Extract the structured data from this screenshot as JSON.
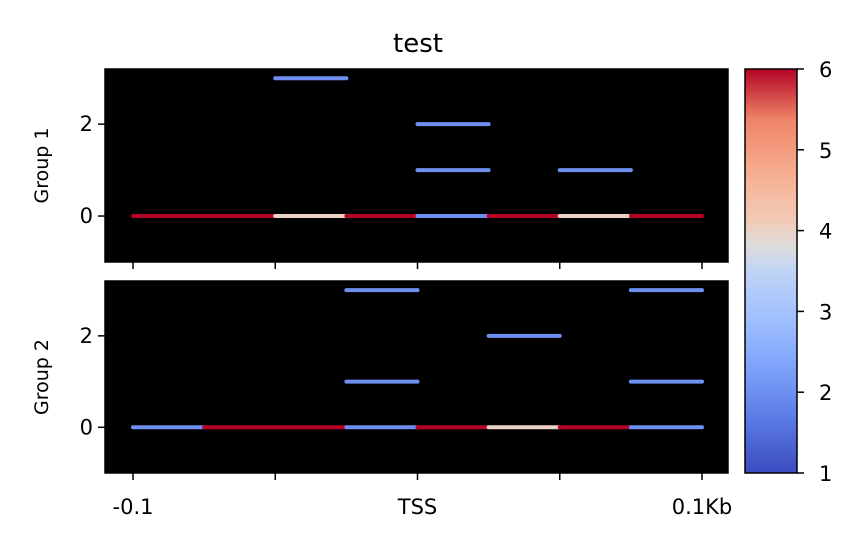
{
  "chart_data": {
    "type": "heatmap",
    "title": "test",
    "x_tick_labels": [
      "-0.1",
      "TSS",
      "0.1Kb"
    ],
    "xlim": [
      -0.1,
      0.1
    ],
    "panels": [
      {
        "name": "Group 1",
        "ylabel": "Group 1",
        "ylim": [
          -1,
          3.2
        ],
        "y_ticks": [
          0,
          2
        ],
        "segments": [
          {
            "y": 3,
            "x_start": -0.05,
            "x_end": -0.025,
            "value": 2
          },
          {
            "y": 2,
            "x_start": 0.0,
            "x_end": 0.025,
            "value": 2
          },
          {
            "y": 1,
            "x_start": 0.0,
            "x_end": 0.025,
            "value": 2
          },
          {
            "y": 1,
            "x_start": 0.05,
            "x_end": 0.075,
            "value": 2
          },
          {
            "y": 0,
            "x_start": -0.1,
            "x_end": -0.05,
            "value": 6
          },
          {
            "y": 0,
            "x_start": -0.05,
            "x_end": -0.025,
            "value": 4
          },
          {
            "y": 0,
            "x_start": -0.025,
            "x_end": 0.0,
            "value": 6
          },
          {
            "y": 0,
            "x_start": 0.0,
            "x_end": 0.025,
            "value": 2
          },
          {
            "y": 0,
            "x_start": 0.025,
            "x_end": 0.05,
            "value": 6
          },
          {
            "y": 0,
            "x_start": 0.05,
            "x_end": 0.075,
            "value": 4
          },
          {
            "y": 0,
            "x_start": 0.075,
            "x_end": 0.1,
            "value": 6
          }
        ]
      },
      {
        "name": "Group 2",
        "ylabel": "Group 2",
        "ylim": [
          -1,
          3.2
        ],
        "y_ticks": [
          0,
          2
        ],
        "segments": [
          {
            "y": 3,
            "x_start": -0.025,
            "x_end": 0.0,
            "value": 2
          },
          {
            "y": 3,
            "x_start": 0.075,
            "x_end": 0.1,
            "value": 2
          },
          {
            "y": 2,
            "x_start": 0.025,
            "x_end": 0.05,
            "value": 2
          },
          {
            "y": 1,
            "x_start": -0.025,
            "x_end": 0.0,
            "value": 2
          },
          {
            "y": 1,
            "x_start": 0.075,
            "x_end": 0.1,
            "value": 2
          },
          {
            "y": 0,
            "x_start": -0.1,
            "x_end": -0.075,
            "value": 2
          },
          {
            "y": 0,
            "x_start": -0.075,
            "x_end": -0.025,
            "value": 6
          },
          {
            "y": 0,
            "x_start": -0.025,
            "x_end": 0.0,
            "value": 2
          },
          {
            "y": 0,
            "x_start": 0.0,
            "x_end": 0.025,
            "value": 6
          },
          {
            "y": 0,
            "x_start": 0.025,
            "x_end": 0.05,
            "value": 4
          },
          {
            "y": 0,
            "x_start": 0.05,
            "x_end": 0.075,
            "value": 6
          },
          {
            "y": 0,
            "x_start": 0.075,
            "x_end": 0.1,
            "value": 2
          }
        ]
      }
    ],
    "colorbar": {
      "colormap": "coolwarm",
      "range": [
        1,
        6
      ],
      "ticks": [
        "1",
        "2",
        "3",
        "4",
        "5",
        "6"
      ]
    },
    "background_color": "#000000",
    "grid": false
  }
}
